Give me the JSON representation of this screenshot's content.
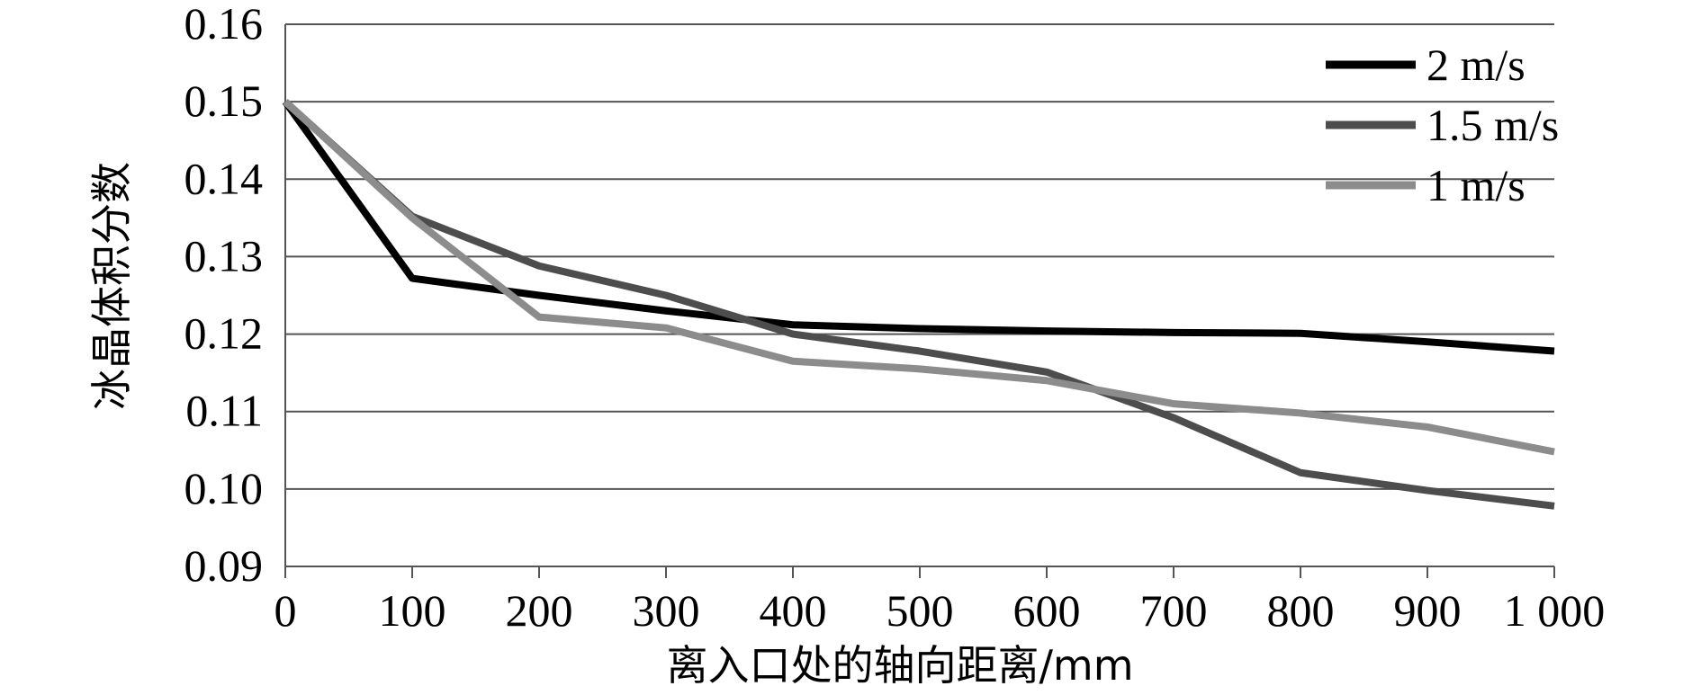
{
  "chart_data": {
    "type": "line",
    "title": "",
    "xlabel": "离入口处的轴向距离/mm",
    "ylabel": "冰晶体积分数",
    "x": [
      0,
      100,
      200,
      300,
      400,
      500,
      600,
      700,
      800,
      900,
      1000
    ],
    "x_tick_labels": [
      "0",
      "100",
      "200",
      "300",
      "400",
      "500",
      "600",
      "700",
      "800",
      "900",
      "1 000"
    ],
    "y_tick_labels": [
      "0.09",
      "0.10",
      "0.11",
      "0.12",
      "0.13",
      "0.14",
      "0.15",
      "0.16"
    ],
    "y_ticks": [
      0.09,
      0.1,
      0.11,
      0.12,
      0.13,
      0.14,
      0.15,
      0.16
    ],
    "xlim": [
      0,
      1000
    ],
    "ylim": [
      0.09,
      0.16
    ],
    "grid": "horizontal",
    "legend_position": "top-right",
    "series": [
      {
        "name": "2 m/s",
        "color": "#000000",
        "values": [
          0.15,
          0.1272,
          0.125,
          0.123,
          0.1212,
          0.1207,
          0.1204,
          0.1202,
          0.1201,
          0.119,
          0.1178
        ]
      },
      {
        "name": "1.5 m/s",
        "color": "#4d4d4d",
        "values": [
          0.15,
          0.1352,
          0.1288,
          0.125,
          0.12,
          0.1178,
          0.1151,
          0.1092,
          0.1021,
          0.0998,
          0.0978
        ]
      },
      {
        "name": "1 m/s",
        "color": "#8c8c8c",
        "values": [
          0.15,
          0.135,
          0.1222,
          0.1208,
          0.1165,
          0.1155,
          0.114,
          0.111,
          0.1098,
          0.108,
          0.1048
        ]
      }
    ]
  }
}
